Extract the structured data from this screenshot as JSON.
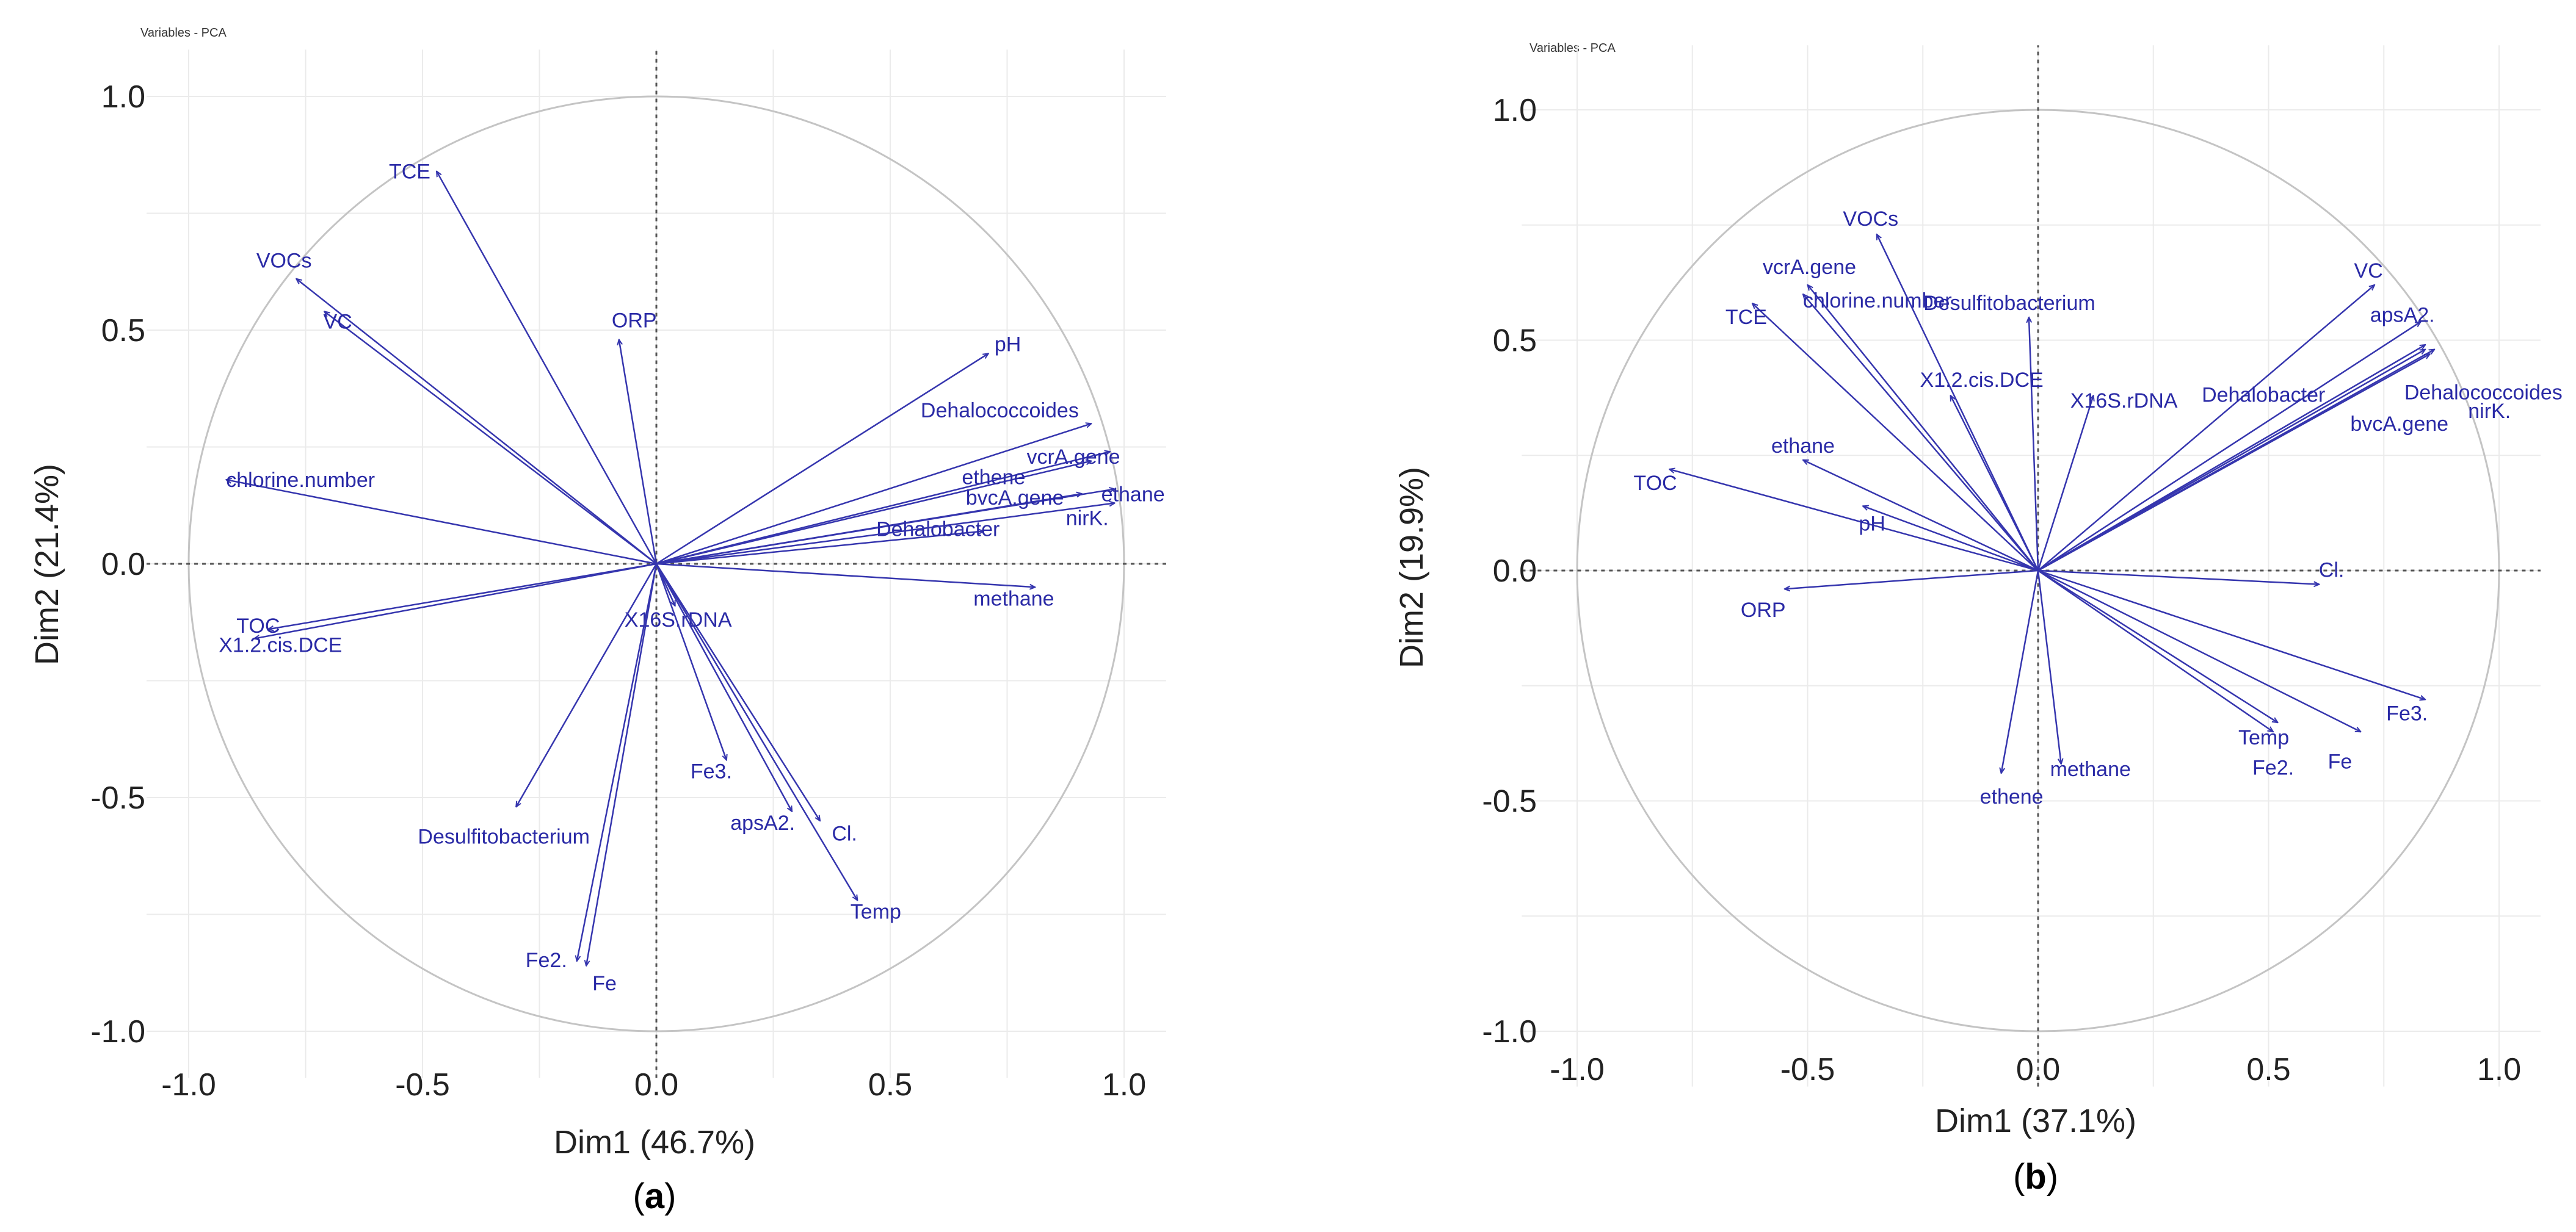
{
  "chart_data": [
    {
      "type": "scatter",
      "subtype": "pca-variables-correlation-circle",
      "panel_tag": "(a)",
      "panel_letter": "a",
      "title": "Variables - PCA",
      "xlabel": "Dim1 (46.7%)",
      "ylabel": "Dim2 (21.4%)",
      "xlim": [
        -1.0,
        1.0
      ],
      "ylim": [
        -1.0,
        1.0
      ],
      "xticks": [
        -1.0,
        -0.5,
        0.0,
        0.5,
        1.0
      ],
      "yticks": [
        -1.0,
        -0.5,
        0.0,
        0.5,
        1.0
      ],
      "xtick_labels": [
        "-1.0",
        "-0.5",
        "0.0",
        "0.5",
        "1.0"
      ],
      "ytick_labels": [
        "-1.0",
        "-0.5",
        "0.0",
        "0.5",
        "1.0"
      ],
      "arrow_color": "#3535ae",
      "variables": [
        {
          "name": "TCE",
          "x": -0.47,
          "y": 0.84
        },
        {
          "name": "VOCs",
          "x": -0.77,
          "y": 0.61
        },
        {
          "name": "VC",
          "x": -0.71,
          "y": 0.54
        },
        {
          "name": "ORP",
          "x": -0.08,
          "y": 0.48
        },
        {
          "name": "pH",
          "x": 0.71,
          "y": 0.45
        },
        {
          "name": "Dehalococcoides",
          "x": 0.93,
          "y": 0.3
        },
        {
          "name": "vcrA.gene",
          "x": 0.97,
          "y": 0.24
        },
        {
          "name": "ethene",
          "x": 0.93,
          "y": 0.22
        },
        {
          "name": "ethane",
          "x": 0.98,
          "y": 0.16
        },
        {
          "name": "bvcA.gene",
          "x": 0.91,
          "y": 0.15
        },
        {
          "name": "Dehalobacter",
          "x": 0.7,
          "y": 0.07
        },
        {
          "name": "nirK.",
          "x": 0.98,
          "y": 0.13
        },
        {
          "name": "methane",
          "x": 0.81,
          "y": -0.05
        },
        {
          "name": "chlorine.number",
          "x": -0.92,
          "y": 0.18
        },
        {
          "name": "TOC",
          "x": -0.83,
          "y": -0.14
        },
        {
          "name": "X1.2.cis.DCE",
          "x": -0.86,
          "y": -0.16
        },
        {
          "name": "X16S.rDNA",
          "x": 0.04,
          "y": -0.09
        },
        {
          "name": "Fe3.",
          "x": 0.15,
          "y": -0.42
        },
        {
          "name": "apsA2.",
          "x": 0.29,
          "y": -0.53
        },
        {
          "name": "Cl.",
          "x": 0.35,
          "y": -0.55
        },
        {
          "name": "Temp",
          "x": 0.43,
          "y": -0.72
        },
        {
          "name": "Desulfitobacterium",
          "x": -0.3,
          "y": -0.52
        },
        {
          "name": "Fe2.",
          "x": -0.17,
          "y": -0.85
        },
        {
          "name": "Fe",
          "x": -0.15,
          "y": -0.86
        }
      ]
    },
    {
      "type": "scatter",
      "subtype": "pca-variables-correlation-circle",
      "panel_tag": "(b)",
      "panel_letter": "b",
      "title": "Variables - PCA",
      "xlabel": "Dim1 (37.1%)",
      "ylabel": "Dim2 (19.9%)",
      "xlim": [
        -1.0,
        1.0
      ],
      "ylim": [
        -1.0,
        1.0
      ],
      "xticks": [
        -1.0,
        -0.5,
        0.0,
        0.5,
        1.0
      ],
      "yticks": [
        -1.0,
        -0.5,
        0.0,
        0.5,
        1.0
      ],
      "xtick_labels": [
        "-1.0",
        "-0.5",
        "0.0",
        "0.5",
        "1.0"
      ],
      "ytick_labels": [
        "-1.0",
        "-0.5",
        "0.0",
        "0.5",
        "1.0"
      ],
      "arrow_color": "#3535ae",
      "variables": [
        {
          "name": "VOCs",
          "x": -0.35,
          "y": 0.73
        },
        {
          "name": "vcrA.gene",
          "x": -0.5,
          "y": 0.62
        },
        {
          "name": "chlorine.number",
          "x": -0.51,
          "y": 0.6
        },
        {
          "name": "TCE",
          "x": -0.62,
          "y": 0.58
        },
        {
          "name": "Desulfitobacterium",
          "x": -0.02,
          "y": 0.55
        },
        {
          "name": "X1.2.cis.DCE",
          "x": -0.19,
          "y": 0.38
        },
        {
          "name": "X16S.rDNA",
          "x": 0.12,
          "y": 0.38
        },
        {
          "name": "ethane",
          "x": -0.51,
          "y": 0.24
        },
        {
          "name": "TOC",
          "x": -0.8,
          "y": 0.22
        },
        {
          "name": "pH",
          "x": -0.38,
          "y": 0.14
        },
        {
          "name": "ORP",
          "x": -0.55,
          "y": -0.04
        },
        {
          "name": "VC",
          "x": 0.73,
          "y": 0.62
        },
        {
          "name": "apsA2.",
          "x": 0.83,
          "y": 0.54
        },
        {
          "name": "Dehalococcoides",
          "x": 0.86,
          "y": 0.48
        },
        {
          "name": "Dehalobacter",
          "x": 0.84,
          "y": 0.48
        },
        {
          "name": "bvcA.gene",
          "x": 0.85,
          "y": 0.47
        },
        {
          "name": "nirK.",
          "x": 0.84,
          "y": 0.49
        },
        {
          "name": "Cl.",
          "x": 0.61,
          "y": -0.03
        },
        {
          "name": "Fe3.",
          "x": 0.84,
          "y": -0.28
        },
        {
          "name": "Temp",
          "x": 0.52,
          "y": -0.33
        },
        {
          "name": "Fe2.",
          "x": 0.51,
          "y": -0.35
        },
        {
          "name": "Fe",
          "x": 0.7,
          "y": -0.35
        },
        {
          "name": "methane",
          "x": 0.05,
          "y": -0.42
        },
        {
          "name": "ethene",
          "x": -0.08,
          "y": -0.44
        }
      ]
    }
  ]
}
